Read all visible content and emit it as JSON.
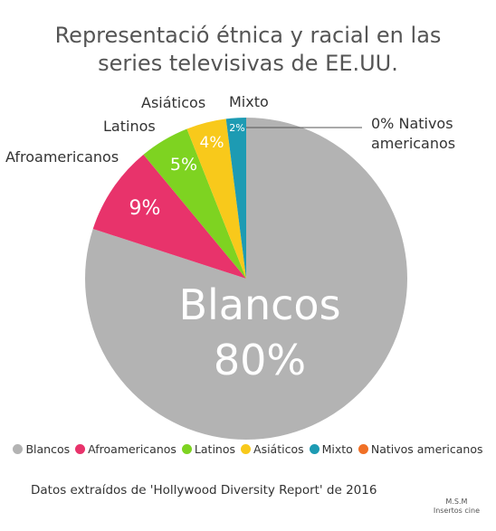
{
  "chart_data": {
    "type": "pie",
    "title_lines": [
      "Representació étnica y racial en las",
      "series televisivas de EE.UU."
    ],
    "slices": [
      {
        "label": "Blancos",
        "value": 80,
        "display": "80%",
        "color": "#b3b3b3"
      },
      {
        "label": "Afroamericanos",
        "value": 9,
        "display": "9%",
        "color": "#e8336b"
      },
      {
        "label": "Latinos",
        "value": 5,
        "display": "5%",
        "color": "#7ed321"
      },
      {
        "label": "Asiáticos",
        "value": 4,
        "display": "4%",
        "color": "#f8c91b"
      },
      {
        "label": "Mixto",
        "value": 2,
        "display": "2%",
        "color": "#1d9bb3"
      },
      {
        "label": "Nativos americanos",
        "value": 0,
        "display": "0%",
        "color": "#f07026"
      }
    ],
    "callouts": {
      "afro": "Afroamericanos",
      "latinos": "Latinos",
      "asiaticos": "Asiáticos",
      "mixto": "Mixto",
      "nativos_line1": "0% Nativos",
      "nativos_line2": "americanos"
    },
    "center_label": "Blancos",
    "legend_position": "bottom"
  },
  "source": "Datos extraídos de 'Hollywood Diversity Report' de 2016",
  "credit": {
    "line1": "M.S.M",
    "line2": "Insertos cine"
  }
}
